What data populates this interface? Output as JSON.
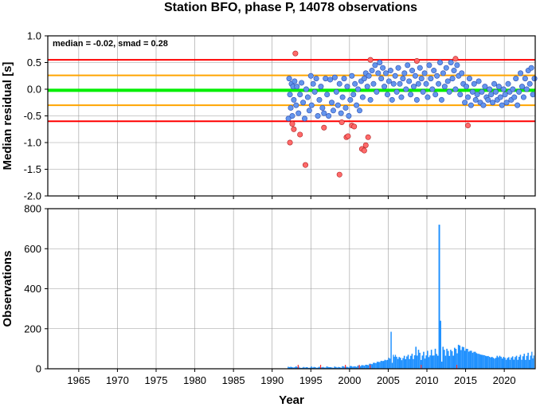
{
  "chart_data": [
    {
      "type": "scatter",
      "title": "Station BFO, phase P, 14078 observations",
      "ylabel": "Median residual [s]",
      "xlabel": "",
      "xlim": [
        1961,
        2024
      ],
      "ylim": [
        -2.0,
        1.0
      ],
      "x_ticks": [
        "1965",
        "1970",
        "1975",
        "1980",
        "1985",
        "1990",
        "1995",
        "2000",
        "2005",
        "2010",
        "2015",
        "2020"
      ],
      "y_ticks": [
        "1.0",
        "0.5",
        "0.0",
        "-0.5",
        "-1.0",
        "-1.5",
        "-2.0"
      ],
      "grid": true,
      "annotation": "median = -0.02, smad = 0.28",
      "reference_lines": [
        {
          "y": 0.55,
          "color": "#ff0000"
        },
        {
          "y": 0.26,
          "color": "#ffa500"
        },
        {
          "y": -0.02,
          "color": "#00ee00"
        },
        {
          "y": -0.3,
          "color": "#ffa500"
        },
        {
          "y": -0.6,
          "color": "#ff0000"
        }
      ],
      "colors": {
        "inlier": "#6495ed",
        "outlier": "#ff6a6a"
      },
      "series": [
        {
          "points": [
            [
              1992.1,
              -0.55
            ],
            [
              1992.2,
              0.2
            ],
            [
              1992.3,
              -0.1
            ],
            [
              1992.4,
              -0.35
            ],
            [
              1992.5,
              0.1
            ],
            [
              1992.6,
              -0.5
            ],
            [
              1992.7,
              0.05
            ],
            [
              1992.8,
              -0.2
            ],
            [
              1992.9,
              0.15
            ],
            [
              1993.1,
              -0.3
            ],
            [
              1993.2,
              0.05
            ],
            [
              1993.4,
              -0.45
            ],
            [
              1993.6,
              -0.1
            ],
            [
              1993.8,
              0.12
            ],
            [
              1994.0,
              -0.25
            ],
            [
              1994.2,
              -0.55
            ],
            [
              1994.4,
              0.0
            ],
            [
              1994.6,
              -0.15
            ],
            [
              1994.8,
              -0.4
            ],
            [
              1995.0,
              0.25
            ],
            [
              1995.1,
              -0.3
            ],
            [
              1995.3,
              0.1
            ],
            [
              1995.5,
              -0.05
            ],
            [
              1995.7,
              0.2
            ],
            [
              1995.9,
              -0.5
            ],
            [
              1996.1,
              -0.2
            ],
            [
              1996.3,
              0.05
            ],
            [
              1996.5,
              -0.35
            ],
            [
              1996.7,
              -0.45
            ],
            [
              1996.9,
              0.2
            ],
            [
              1997.1,
              -0.1
            ],
            [
              1997.3,
              -0.5
            ],
            [
              1997.5,
              0.18
            ],
            [
              1997.7,
              -0.25
            ],
            [
              1997.9,
              -0.4
            ],
            [
              1998.1,
              0.22
            ],
            [
              1998.3,
              -0.05
            ],
            [
              1998.5,
              -0.3
            ],
            [
              1998.7,
              0.1
            ],
            [
              1998.9,
              -0.45
            ],
            [
              1999.1,
              -0.15
            ],
            [
              1999.3,
              0.2
            ],
            [
              1999.5,
              -0.35
            ],
            [
              1999.7,
              0.05
            ],
            [
              1999.9,
              -0.5
            ],
            [
              2000.1,
              -0.2
            ],
            [
              2000.3,
              0.25
            ],
            [
              2000.5,
              -0.1
            ],
            [
              2000.7,
              0.1
            ],
            [
              2000.9,
              -0.3
            ],
            [
              2001.1,
              0.0
            ],
            [
              2001.3,
              -0.4
            ],
            [
              2001.5,
              0.15
            ],
            [
              2001.7,
              -0.15
            ],
            [
              2001.9,
              0.2
            ],
            [
              2002.1,
              0.3
            ],
            [
              2002.3,
              0.05
            ],
            [
              2002.5,
              0.25
            ],
            [
              2002.7,
              -0.2
            ],
            [
              2002.9,
              0.35
            ],
            [
              2003.1,
              0.1
            ],
            [
              2003.3,
              0.45
            ],
            [
              2003.5,
              -0.05
            ],
            [
              2003.7,
              0.3
            ],
            [
              2003.9,
              0.5
            ],
            [
              2004.1,
              0.2
            ],
            [
              2004.3,
              0.4
            ],
            [
              2004.5,
              0.05
            ],
            [
              2004.7,
              0.3
            ],
            [
              2004.9,
              -0.1
            ],
            [
              2005.1,
              0.15
            ],
            [
              2005.3,
              0.35
            ],
            [
              2005.5,
              -0.2
            ],
            [
              2005.7,
              0.1
            ],
            [
              2005.9,
              0.25
            ],
            [
              2006.1,
              -0.05
            ],
            [
              2006.3,
              0.4
            ],
            [
              2006.5,
              0.1
            ],
            [
              2006.7,
              -0.15
            ],
            [
              2006.9,
              0.2
            ],
            [
              2007.1,
              0.3
            ],
            [
              2007.3,
              0.0
            ],
            [
              2007.5,
              0.45
            ],
            [
              2007.7,
              0.15
            ],
            [
              2007.9,
              -0.1
            ],
            [
              2008.1,
              0.35
            ],
            [
              2008.3,
              0.05
            ],
            [
              2008.5,
              0.25
            ],
            [
              2008.7,
              -0.2
            ],
            [
              2008.9,
              0.1
            ],
            [
              2009.1,
              0.4
            ],
            [
              2009.3,
              0.2
            ],
            [
              2009.5,
              -0.05
            ],
            [
              2009.7,
              0.3
            ],
            [
              2009.9,
              0.1
            ],
            [
              2010.1,
              -0.15
            ],
            [
              2010.3,
              0.45
            ],
            [
              2010.5,
              0.2
            ],
            [
              2010.7,
              0.0
            ],
            [
              2010.9,
              0.35
            ],
            [
              2011.1,
              -0.1
            ],
            [
              2011.3,
              0.25
            ],
            [
              2011.5,
              0.1
            ],
            [
              2011.7,
              0.5
            ],
            [
              2011.9,
              -0.2
            ],
            [
              2012.1,
              0.3
            ],
            [
              2012.3,
              0.05
            ],
            [
              2012.5,
              0.4
            ],
            [
              2012.7,
              0.15
            ],
            [
              2012.9,
              -0.05
            ],
            [
              2013.1,
              0.5
            ],
            [
              2013.3,
              0.2
            ],
            [
              2013.5,
              0.35
            ],
            [
              2013.7,
              0.0
            ],
            [
              2013.9,
              0.45
            ],
            [
              2014.1,
              0.25
            ],
            [
              2014.3,
              -0.1
            ],
            [
              2014.5,
              0.3
            ],
            [
              2014.7,
              0.1
            ],
            [
              2014.9,
              -0.25
            ],
            [
              2015.1,
              0.05
            ],
            [
              2015.3,
              -0.15
            ],
            [
              2015.5,
              0.2
            ],
            [
              2015.7,
              -0.3
            ],
            [
              2015.9,
              -0.05
            ],
            [
              2016.1,
              0.1
            ],
            [
              2016.3,
              -0.2
            ],
            [
              2016.5,
              -0.1
            ],
            [
              2016.7,
              0.15
            ],
            [
              2016.9,
              -0.25
            ],
            [
              2017.1,
              -0.05
            ],
            [
              2017.3,
              -0.3
            ],
            [
              2017.5,
              0.05
            ],
            [
              2017.7,
              -0.15
            ],
            [
              2017.9,
              -0.2
            ],
            [
              2018.1,
              0.0
            ],
            [
              2018.3,
              -0.1
            ],
            [
              2018.5,
              -0.25
            ],
            [
              2018.7,
              0.1
            ],
            [
              2018.9,
              -0.05
            ],
            [
              2019.1,
              -0.2
            ],
            [
              2019.3,
              0.05
            ],
            [
              2019.5,
              -0.15
            ],
            [
              2019.7,
              -0.3
            ],
            [
              2019.9,
              0.0
            ],
            [
              2020.1,
              -0.1
            ],
            [
              2020.3,
              -0.25
            ],
            [
              2020.5,
              0.1
            ],
            [
              2020.7,
              -0.05
            ],
            [
              2020.9,
              -0.2
            ],
            [
              2021.1,
              0.0
            ],
            [
              2021.3,
              -0.15
            ],
            [
              2021.5,
              0.2
            ],
            [
              2021.7,
              -0.3
            ],
            [
              2021.9,
              -0.05
            ],
            [
              2022.1,
              0.3
            ],
            [
              2022.3,
              0.05
            ],
            [
              2022.5,
              -0.15
            ],
            [
              2022.7,
              0.2
            ],
            [
              2022.9,
              0.0
            ],
            [
              2023.1,
              0.35
            ],
            [
              2023.3,
              0.1
            ],
            [
              2023.5,
              0.4
            ],
            [
              2023.7,
              -0.1
            ],
            [
              2023.9,
              0.2
            ]
          ]
        },
        {
          "points": [
            [
              1992.3,
              -1.0
            ],
            [
              1992.6,
              -0.65
            ],
            [
              1992.8,
              -0.75
            ],
            [
              1993.0,
              0.67
            ],
            [
              1993.6,
              -0.85
            ],
            [
              1994.3,
              -1.42
            ],
            [
              1996.7,
              -0.72
            ],
            [
              1998.7,
              -1.6
            ],
            [
              1999.0,
              -0.62
            ],
            [
              1999.6,
              -0.9
            ],
            [
              1999.8,
              -0.88
            ],
            [
              2000.3,
              -0.68
            ],
            [
              2000.6,
              -0.7
            ],
            [
              2001.6,
              -1.12
            ],
            [
              2001.9,
              -1.15
            ],
            [
              2002.1,
              -1.05
            ],
            [
              2002.4,
              -0.9
            ],
            [
              2002.7,
              0.55
            ],
            [
              2008.7,
              0.53
            ],
            [
              2013.7,
              0.57
            ],
            [
              2015.3,
              -0.68
            ]
          ]
        }
      ]
    },
    {
      "type": "bar",
      "xlabel": "Year",
      "ylabel": "Observations",
      "xlim": [
        1961,
        2024
      ],
      "ylim": [
        0,
        800
      ],
      "x_ticks": [
        "1965",
        "1970",
        "1975",
        "1980",
        "1985",
        "1990",
        "1995",
        "2000",
        "2005",
        "2010",
        "2015",
        "2020"
      ],
      "y_ticks": [
        "800",
        "600",
        "400",
        "200",
        "0"
      ],
      "grid": true,
      "colors": {
        "bars": "#1e90ff",
        "low_bars": "#ff3333"
      },
      "series": [
        {
          "bins": [
            [
              1992.0,
              10
            ],
            [
              1992.5,
              8
            ],
            [
              1993.0,
              12
            ],
            [
              1993.5,
              6
            ],
            [
              1994.0,
              9
            ],
            [
              1994.5,
              7
            ],
            [
              1995.0,
              11
            ],
            [
              1995.5,
              8
            ],
            [
              1996.0,
              10
            ],
            [
              1996.5,
              9
            ],
            [
              1997.0,
              12
            ],
            [
              1997.5,
              8
            ],
            [
              1998.0,
              11
            ],
            [
              1998.5,
              9
            ],
            [
              1999.0,
              13
            ],
            [
              1999.5,
              10
            ],
            [
              2000.0,
              14
            ],
            [
              2000.5,
              12
            ],
            [
              2001.0,
              16
            ],
            [
              2001.5,
              18
            ],
            [
              2002.0,
              20
            ],
            [
              2002.5,
              25
            ],
            [
              2003.0,
              30
            ],
            [
              2003.5,
              35
            ],
            [
              2004.0,
              40
            ],
            [
              2004.5,
              45
            ],
            [
              2005.0,
              55
            ],
            [
              2005.3,
              185
            ],
            [
              2005.6,
              70
            ],
            [
              2006.0,
              60
            ],
            [
              2006.5,
              55
            ],
            [
              2007.0,
              65
            ],
            [
              2007.5,
              70
            ],
            [
              2008.0,
              75
            ],
            [
              2008.5,
              110
            ],
            [
              2009.0,
              80
            ],
            [
              2009.5,
              85
            ],
            [
              2010.0,
              90
            ],
            [
              2010.5,
              95
            ],
            [
              2011.0,
              100
            ],
            [
              2011.5,
              720
            ],
            [
              2011.7,
              240
            ],
            [
              2012.0,
              110
            ],
            [
              2012.5,
              100
            ],
            [
              2013.0,
              95
            ],
            [
              2013.5,
              105
            ],
            [
              2014.0,
              120
            ],
            [
              2014.5,
              110
            ],
            [
              2015.0,
              100
            ],
            [
              2015.5,
              90
            ],
            [
              2016.0,
              85
            ],
            [
              2016.5,
              75
            ],
            [
              2017.0,
              70
            ],
            [
              2017.5,
              65
            ],
            [
              2018.0,
              60
            ],
            [
              2018.5,
              55
            ],
            [
              2019.0,
              65
            ],
            [
              2019.5,
              60
            ],
            [
              2020.0,
              55
            ],
            [
              2020.5,
              58
            ],
            [
              2021.0,
              62
            ],
            [
              2021.5,
              65
            ],
            [
              2022.0,
              70
            ],
            [
              2022.5,
              75
            ],
            [
              2023.0,
              80
            ],
            [
              2023.5,
              85
            ]
          ]
        }
      ]
    }
  ]
}
